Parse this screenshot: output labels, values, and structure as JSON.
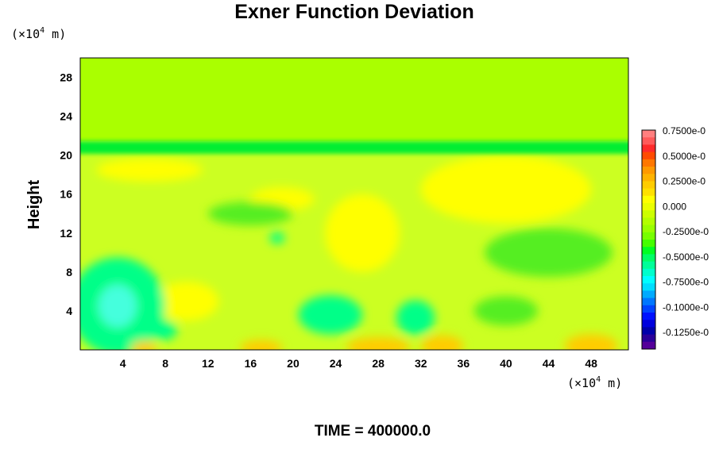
{
  "chart_data": {
    "type": "heatmap",
    "title": "Exner Function Deviation",
    "ylabel": "Height",
    "y_unit_prefix": "(×10",
    "y_unit_exp": "4",
    "y_unit_suffix": " m)",
    "x_unit_prefix": "(×10",
    "x_unit_exp": "4",
    "x_unit_suffix": " m)",
    "xlim": [
      0,
      51.5
    ],
    "ylim": [
      0,
      30
    ],
    "x_ticks": [
      4,
      8,
      12,
      16,
      20,
      24,
      28,
      32,
      36,
      40,
      44,
      48
    ],
    "y_ticks": [
      4,
      8,
      12,
      16,
      20,
      24,
      28
    ],
    "x_tick_labels": [
      "4",
      "8",
      "12",
      "16",
      "20",
      "24",
      "28",
      "32",
      "36",
      "40",
      "44",
      "48"
    ],
    "y_tick_labels": [
      "4",
      "8",
      "12",
      "16",
      "20",
      "24",
      "28"
    ],
    "colorbar_labels": [
      "0.7500e-0",
      "0.5000e-0",
      "0.2500e-0",
      "0.000",
      "-0.2500e-0",
      "-0.5000e-0",
      "-0.7500e-0",
      "-0.1000e-0",
      "-0.1250e-0"
    ],
    "colorbar_colors": [
      "#ff7f7f",
      "#ff5a5a",
      "#ff2a2a",
      "#ff4a00",
      "#ff7700",
      "#ff9900",
      "#ffb300",
      "#ffcc00",
      "#ffe000",
      "#ffff00",
      "#eaff00",
      "#ccff00",
      "#b3ff00",
      "#99ff00",
      "#77ff00",
      "#44ff00",
      "#00ff22",
      "#00ff66",
      "#00ff99",
      "#00ffcc",
      "#00ffff",
      "#00ddff",
      "#00aaff",
      "#0077ff",
      "#0044ff",
      "#0011ff",
      "#0000dd",
      "#0000aa",
      "#2a0099",
      "#550099"
    ],
    "field_colors": {
      "background_upper": "#aaff00",
      "background_lower": "#ccff22",
      "band": "#00ee33",
      "warm": "#ffff00",
      "warmer": "#ffcc00",
      "cool": "#55ee22",
      "cold": "#00ff88",
      "coldest": "#44ffdd"
    },
    "features": [
      {
        "kind": "band",
        "y": 20.8,
        "height": 1.3
      },
      {
        "kind": "warm",
        "x": 40,
        "y": 16.5,
        "rx": 8,
        "ry": 3.5
      },
      {
        "kind": "warm",
        "x": 26.5,
        "y": 12,
        "rx": 3.5,
        "ry": 4
      },
      {
        "kind": "warm",
        "x": 10,
        "y": 5,
        "rx": 3,
        "ry": 2
      },
      {
        "kind": "warm",
        "x": 19,
        "y": 15.5,
        "rx": 3,
        "ry": 1.2
      },
      {
        "kind": "warm",
        "x": 6.5,
        "y": 18.5,
        "rx": 5,
        "ry": 1.2
      },
      {
        "kind": "cool",
        "x": 44,
        "y": 10,
        "rx": 6,
        "ry": 2.5
      },
      {
        "kind": "cool",
        "x": 40,
        "y": 4,
        "rx": 3,
        "ry": 1.5
      },
      {
        "kind": "cool",
        "x": 16,
        "y": 14,
        "rx": 4,
        "ry": 1.2
      },
      {
        "kind": "cold",
        "x": 3.5,
        "y": 4.5,
        "rx": 4.5,
        "ry": 5
      },
      {
        "kind": "coldest",
        "x": 3.5,
        "y": 4.5,
        "rx": 1.8,
        "ry": 2.2
      },
      {
        "kind": "cold",
        "x": 7.8,
        "y": 2,
        "rx": 1.3,
        "ry": 1
      },
      {
        "kind": "cold",
        "x": 23.5,
        "y": 3.6,
        "rx": 3,
        "ry": 2
      },
      {
        "kind": "cold",
        "x": 31.5,
        "y": 3.3,
        "rx": 1.8,
        "ry": 1.8
      },
      {
        "kind": "cold",
        "x": 18.5,
        "y": 11.5,
        "rx": 0.7,
        "ry": 0.6
      },
      {
        "kind": "warmer",
        "x": 6,
        "y": 0.2,
        "rx": 1.2,
        "ry": 0.7
      },
      {
        "kind": "warmer",
        "x": 17,
        "y": 0.2,
        "rx": 2,
        "ry": 0.8
      },
      {
        "kind": "warmer",
        "x": 28,
        "y": 0.3,
        "rx": 3,
        "ry": 1
      },
      {
        "kind": "warmer",
        "x": 34,
        "y": 0.4,
        "rx": 2,
        "ry": 1.1
      },
      {
        "kind": "warmer",
        "x": 48,
        "y": 0.4,
        "rx": 2.5,
        "ry": 1.2
      }
    ]
  },
  "footer": {
    "time_label": "TIME = 400000.0"
  }
}
